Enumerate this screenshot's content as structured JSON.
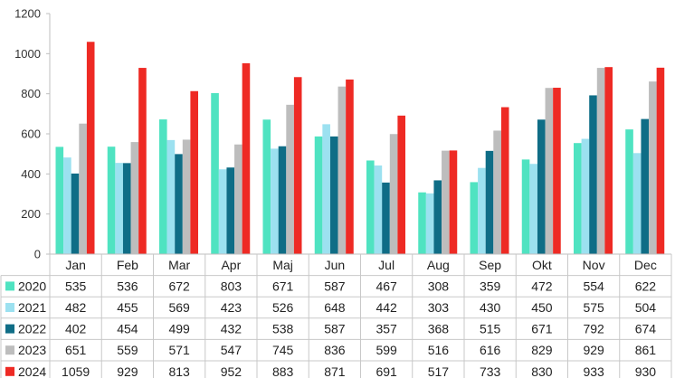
{
  "chart_data": {
    "type": "bar",
    "categories": [
      "Jan",
      "Feb",
      "Mar",
      "Apr",
      "Maj",
      "Jun",
      "Jul",
      "Aug",
      "Sep",
      "Okt",
      "Nov",
      "Dec"
    ],
    "series": [
      {
        "name": "2020",
        "color": "#4fe3c1",
        "values": [
          535,
          536,
          672,
          803,
          671,
          587,
          467,
          308,
          359,
          472,
          554,
          622
        ]
      },
      {
        "name": "2021",
        "color": "#9ce1f0",
        "values": [
          482,
          455,
          569,
          423,
          526,
          648,
          442,
          303,
          430,
          450,
          575,
          504
        ]
      },
      {
        "name": "2022",
        "color": "#0f6d86",
        "values": [
          402,
          454,
          499,
          432,
          538,
          587,
          357,
          368,
          515,
          671,
          792,
          674
        ]
      },
      {
        "name": "2023",
        "color": "#bdbdbd",
        "values": [
          651,
          559,
          571,
          547,
          745,
          836,
          599,
          516,
          616,
          829,
          929,
          861
        ]
      },
      {
        "name": "2024",
        "color": "#ee2a24",
        "values": [
          1059,
          929,
          813,
          952,
          883,
          871,
          691,
          517,
          733,
          830,
          933,
          930
        ]
      }
    ],
    "ylim": [
      0,
      1200
    ],
    "yticks": [
      0,
      200,
      400,
      600,
      800,
      1000,
      1200
    ],
    "grid": false,
    "legend": "data-table"
  }
}
